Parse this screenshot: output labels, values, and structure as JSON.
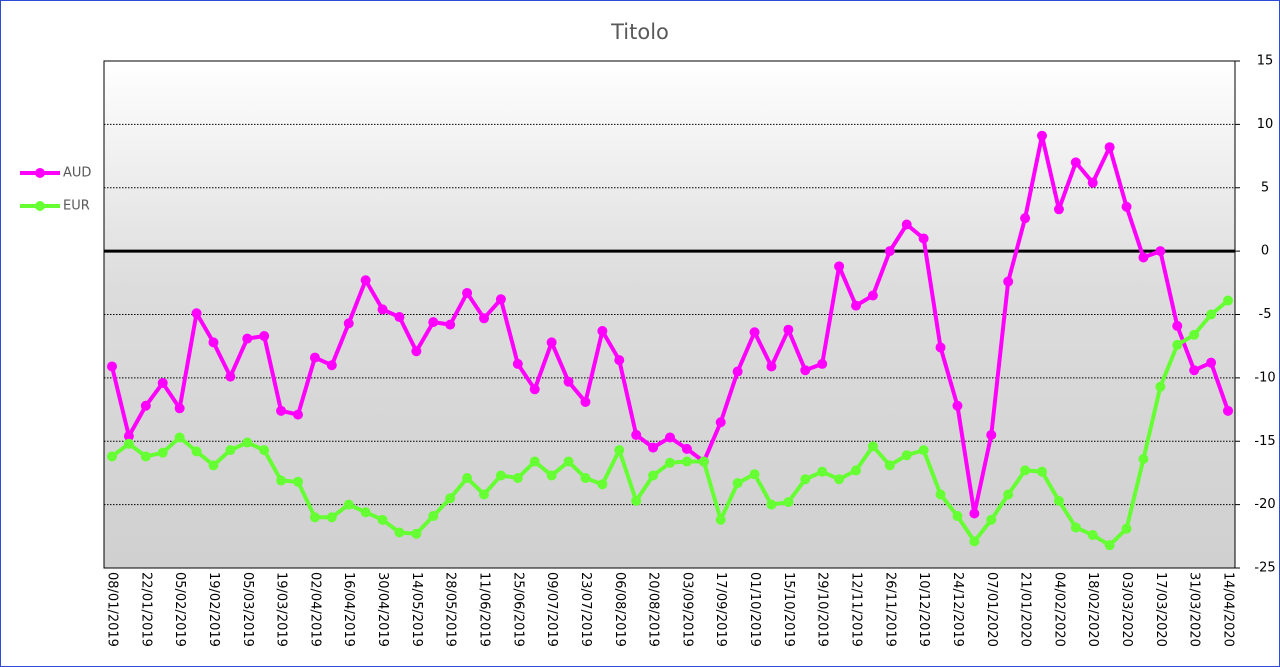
{
  "chart_data": {
    "type": "line",
    "title": "Titolo",
    "categories": [
      "08/01/2019",
      null,
      "22/01/2019",
      null,
      "05/02/2019",
      null,
      "19/02/2019",
      null,
      "05/03/2019",
      null,
      "19/03/2019",
      null,
      "02/04/2019",
      null,
      "16/04/2019",
      null,
      "30/04/2019",
      null,
      "14/05/2019",
      null,
      "28/05/2019",
      null,
      "11/06/2019",
      null,
      "25/06/2019",
      null,
      "09/07/2019",
      null,
      "23/07/2019",
      null,
      "06/08/2019",
      null,
      "20/08/2019",
      null,
      "03/09/2019",
      null,
      "17/09/2019",
      null,
      "01/10/2019",
      null,
      "15/10/2019",
      null,
      "29/10/2019",
      null,
      "12/11/2019",
      null,
      "26/11/2019",
      null,
      "10/12/2019",
      null,
      "24/12/2019",
      null,
      "07/01/2020",
      null,
      "21/01/2020",
      null,
      "04/02/2020",
      null,
      "18/02/2020",
      null,
      "03/03/2020",
      null,
      "17/03/2020",
      null,
      "31/03/2020",
      null,
      "14/04/2020"
    ],
    "series": [
      {
        "name": "AUD",
        "color": "#ff00ff",
        "values": [
          -9.1,
          -14.6,
          -12.2,
          -10.4,
          -12.4,
          -4.9,
          -7.2,
          -9.9,
          -6.9,
          -6.7,
          -12.6,
          -12.9,
          -8.4,
          -9.0,
          -5.7,
          -2.3,
          -4.6,
          -5.2,
          -7.9,
          -5.6,
          -5.8,
          -3.3,
          -5.3,
          -3.8,
          -8.9,
          -10.9,
          -7.2,
          -10.3,
          -11.9,
          -6.3,
          -8.6,
          -14.5,
          -15.5,
          -14.7,
          -15.6,
          -16.6,
          -13.5,
          -9.5,
          -6.4,
          -9.1,
          -6.2,
          -9.4,
          -8.9,
          -1.2,
          -4.3,
          -3.5,
          0.0,
          2.1,
          1.0,
          -7.6,
          -12.2,
          -20.7,
          -14.5,
          -2.4,
          2.6,
          9.1,
          3.3,
          7.0,
          5.4,
          8.2,
          3.5,
          -0.5,
          0.0,
          -5.9,
          -9.4,
          -8.8,
          -12.6
        ]
      },
      {
        "name": "EUR",
        "color": "#66ff33",
        "values": [
          -16.2,
          -15.2,
          -16.2,
          -15.9,
          -14.7,
          -15.8,
          -16.9,
          -15.7,
          -15.1,
          -15.7,
          -18.1,
          -18.2,
          -21.0,
          -21.0,
          -20.0,
          -20.6,
          -21.2,
          -22.2,
          -22.3,
          -20.9,
          -19.5,
          -17.9,
          -19.2,
          -17.7,
          -17.9,
          -16.6,
          -17.7,
          -16.6,
          -17.9,
          -18.4,
          -15.7,
          -19.7,
          -17.7,
          -16.7,
          -16.6,
          -16.6,
          -21.2,
          -18.3,
          -17.6,
          -20.0,
          -19.8,
          -18.0,
          -17.4,
          -18.0,
          -17.3,
          -15.4,
          -16.9,
          -16.1,
          -15.7,
          -19.2,
          -20.9,
          -22.9,
          -21.2,
          -19.2,
          -17.3,
          -17.4,
          -19.7,
          -21.8,
          -22.4,
          -23.2,
          -21.9,
          -16.4,
          -10.7,
          -7.4,
          -6.6,
          -5.0,
          -3.9
        ]
      }
    ],
    "ylim": [
      -25,
      15
    ],
    "yticks": [
      -25,
      -20,
      -15,
      -10,
      -5,
      0,
      5,
      10,
      15
    ],
    "y_axis_side": "right",
    "grid": true,
    "legend_position": "left"
  }
}
